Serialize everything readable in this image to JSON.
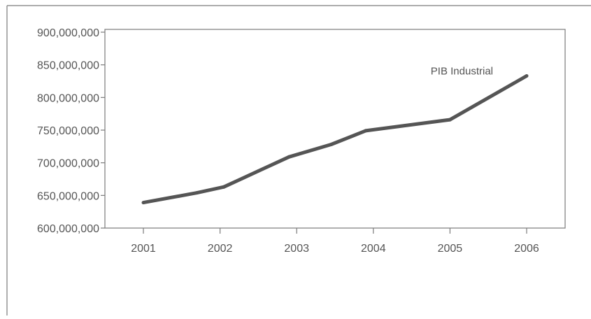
{
  "chart_data": {
    "type": "line",
    "title": "",
    "xlabel": "",
    "ylabel": "",
    "x": [
      "2001",
      "2002",
      "2003",
      "2004",
      "2005",
      "2006"
    ],
    "ylim": [
      600000000,
      900000000
    ],
    "yticks": [
      {
        "value": 600000000,
        "label": "600,000,000"
      },
      {
        "value": 650000000,
        "label": "650,000,000"
      },
      {
        "value": 700000000,
        "label": "700,000,000"
      },
      {
        "value": 750000000,
        "label": "750,000,000"
      },
      {
        "value": 800000000,
        "label": "800,000,000"
      },
      {
        "value": 850000000,
        "label": "850,000,000"
      },
      {
        "value": 900000000,
        "label": "900,000,000"
      }
    ],
    "grid": false,
    "legend": "none",
    "series": [
      {
        "name": "PIB Industrial",
        "color": "#555555",
        "points": [
          {
            "x": 2001.0,
            "y": 639000000
          },
          {
            "x": 2001.7,
            "y": 654000000
          },
          {
            "x": 2002.05,
            "y": 663000000
          },
          {
            "x": 2002.9,
            "y": 709000000
          },
          {
            "x": 2003.45,
            "y": 728000000
          },
          {
            "x": 2003.9,
            "y": 749000000
          },
          {
            "x": 2005.0,
            "y": 766000000
          },
          {
            "x": 2006.0,
            "y": 833000000
          }
        ]
      }
    ]
  }
}
